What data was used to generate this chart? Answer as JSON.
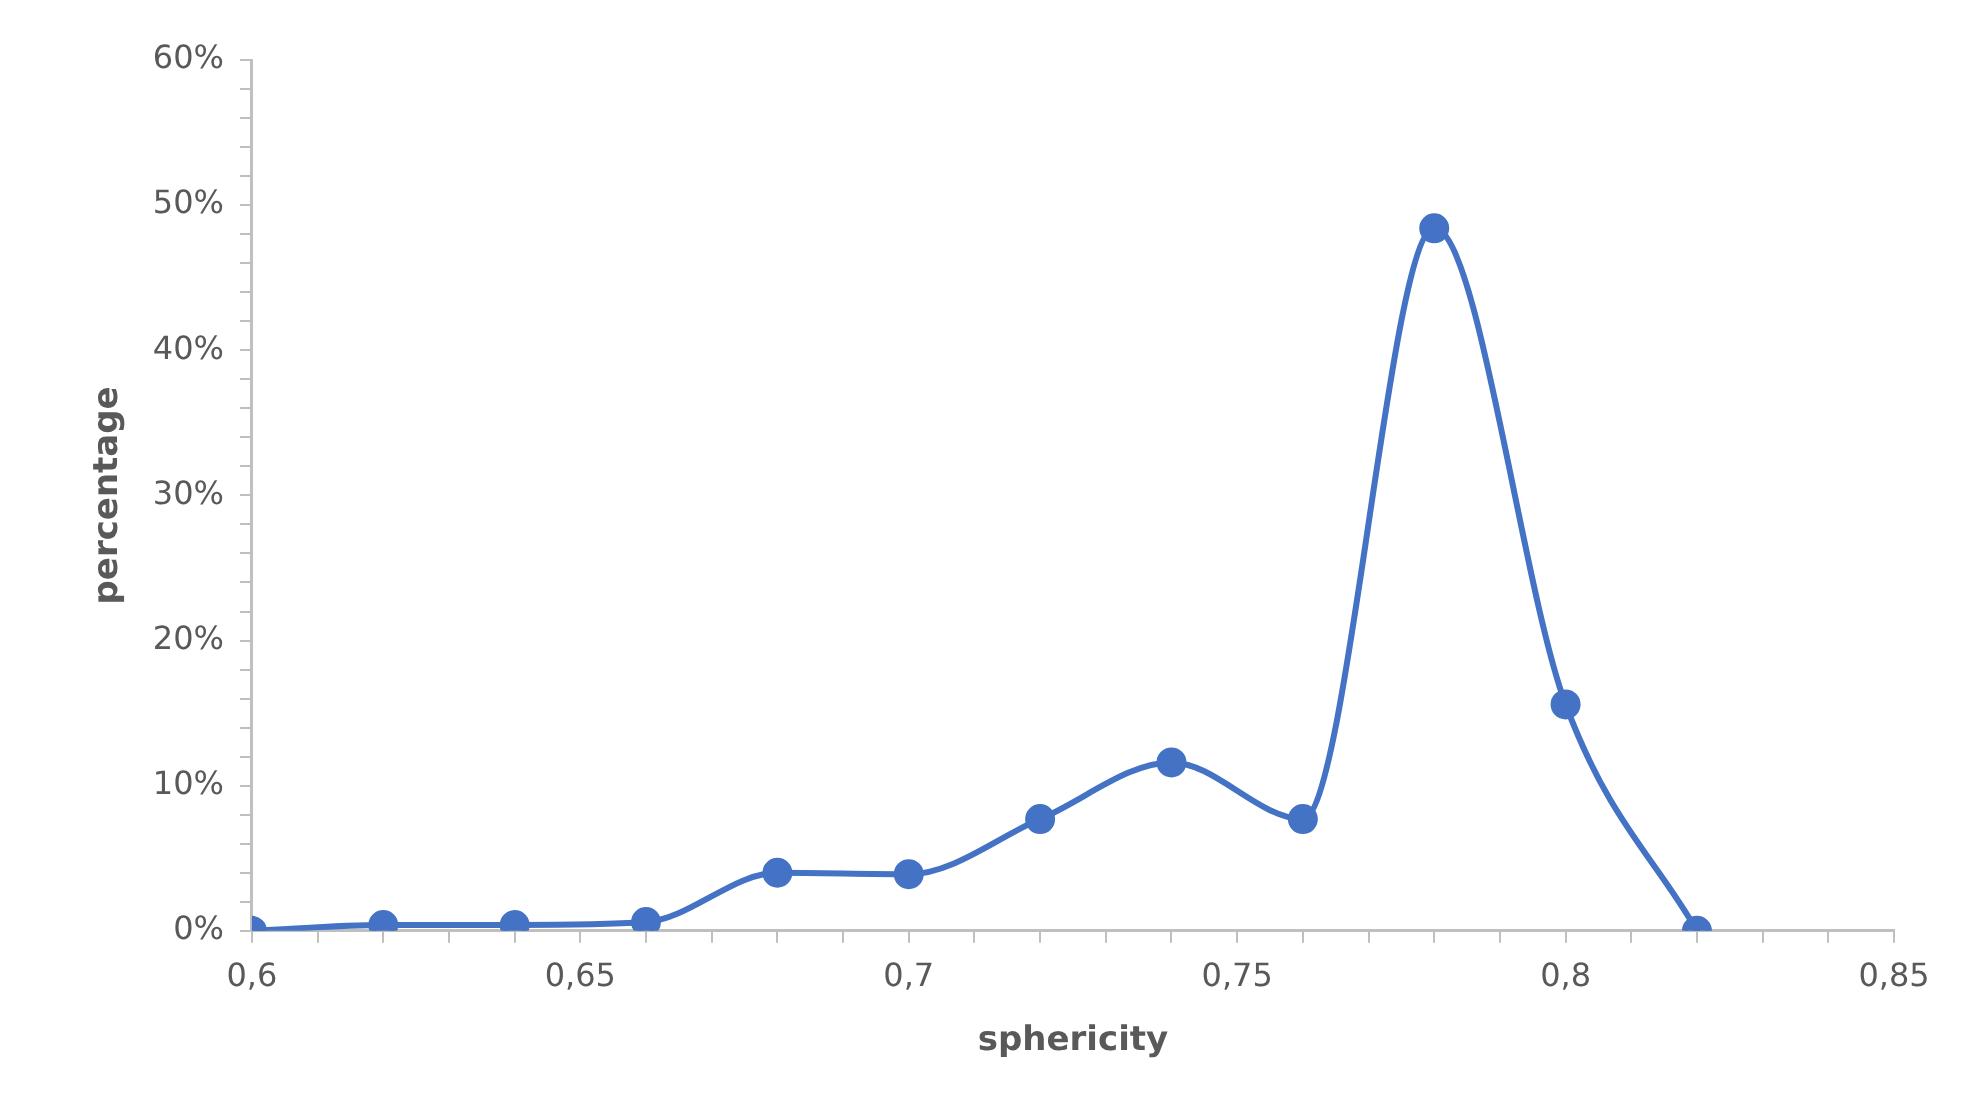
{
  "chart_data": {
    "type": "line",
    "xlabel": "sphericity",
    "ylabel": "percentage",
    "x": [
      0.6,
      0.62,
      0.64,
      0.66,
      0.68,
      0.7,
      0.72,
      0.74,
      0.76,
      0.78,
      0.8,
      0.82
    ],
    "series": [
      {
        "color": "#4472c4",
        "values": [
          0,
          0.4,
          0.4,
          0.6,
          4.0,
          3.9,
          7.7,
          11.6,
          7.7,
          48.4,
          15.6,
          0
        ]
      }
    ],
    "xlim": [
      0.6,
      0.85
    ],
    "xticks": [
      {
        "value": 0.6,
        "label": "0,6"
      },
      {
        "value": 0.61,
        "label": null
      },
      {
        "value": 0.62,
        "label": null
      },
      {
        "value": 0.63,
        "label": null
      },
      {
        "value": 0.64,
        "label": null
      },
      {
        "value": 0.65,
        "label": "0,65"
      },
      {
        "value": 0.66,
        "label": null
      },
      {
        "value": 0.67,
        "label": null
      },
      {
        "value": 0.68,
        "label": null
      },
      {
        "value": 0.69,
        "label": null
      },
      {
        "value": 0.7,
        "label": "0,7"
      },
      {
        "value": 0.71,
        "label": null
      },
      {
        "value": 0.72,
        "label": null
      },
      {
        "value": 0.73,
        "label": null
      },
      {
        "value": 0.74,
        "label": null
      },
      {
        "value": 0.75,
        "label": "0,75"
      },
      {
        "value": 0.76,
        "label": null
      },
      {
        "value": 0.77,
        "label": null
      },
      {
        "value": 0.78,
        "label": null
      },
      {
        "value": 0.79,
        "label": null
      },
      {
        "value": 0.8,
        "label": "0,8"
      },
      {
        "value": 0.81,
        "label": null
      },
      {
        "value": 0.82,
        "label": null
      },
      {
        "value": 0.83,
        "label": null
      },
      {
        "value": 0.84,
        "label": null
      },
      {
        "value": 0.85,
        "label": "0,85"
      }
    ],
    "ylim": [
      0,
      60
    ],
    "yticks": [
      {
        "value": 0,
        "label": "0%"
      },
      {
        "value": 2,
        "label": null
      },
      {
        "value": 4,
        "label": null
      },
      {
        "value": 6,
        "label": null
      },
      {
        "value": 8,
        "label": null
      },
      {
        "value": 10,
        "label": "10%"
      },
      {
        "value": 12,
        "label": null
      },
      {
        "value": 14,
        "label": null
      },
      {
        "value": 16,
        "label": null
      },
      {
        "value": 18,
        "label": null
      },
      {
        "value": 20,
        "label": "20%"
      },
      {
        "value": 22,
        "label": null
      },
      {
        "value": 24,
        "label": null
      },
      {
        "value": 26,
        "label": null
      },
      {
        "value": 28,
        "label": null
      },
      {
        "value": 30,
        "label": "30%"
      },
      {
        "value": 32,
        "label": null
      },
      {
        "value": 34,
        "label": null
      },
      {
        "value": 36,
        "label": null
      },
      {
        "value": 38,
        "label": null
      },
      {
        "value": 40,
        "label": "40%"
      },
      {
        "value": 42,
        "label": null
      },
      {
        "value": 44,
        "label": null
      },
      {
        "value": 46,
        "label": null
      },
      {
        "value": 48,
        "label": null
      },
      {
        "value": 50,
        "label": "50%"
      },
      {
        "value": 52,
        "label": null
      },
      {
        "value": 54,
        "label": null
      },
      {
        "value": 56,
        "label": null
      },
      {
        "value": 58,
        "label": null
      },
      {
        "value": 60,
        "label": "60%"
      }
    ],
    "grid": false,
    "legend": false,
    "marker": "circle",
    "line_style": "solid"
  }
}
